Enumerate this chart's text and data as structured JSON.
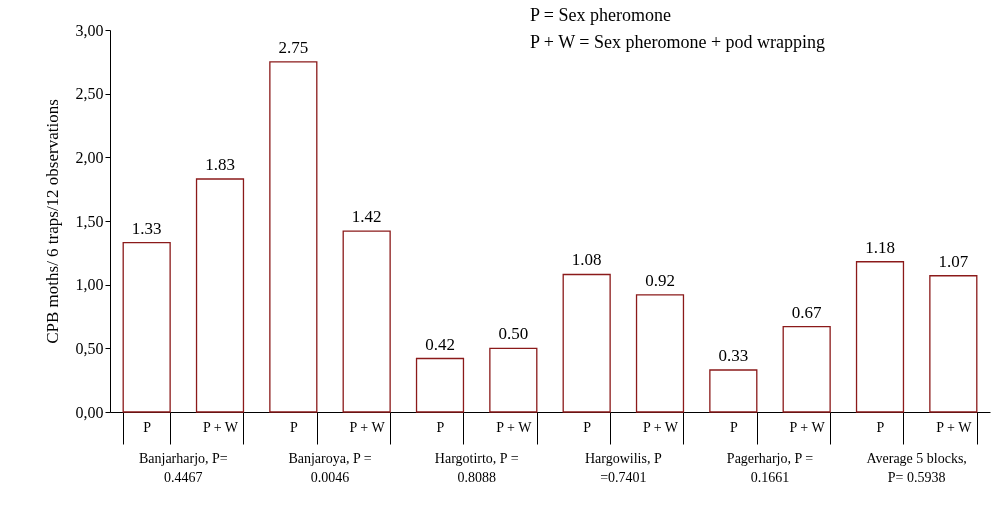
{
  "chart_data": {
    "type": "bar",
    "ylabel": "CPB moths/ 6 traps/12 observations",
    "categories": [
      "P",
      "P + W",
      "P",
      "P + W",
      "P",
      "P + W",
      "P",
      "P + W",
      "P",
      "P + W",
      "P",
      "P + W"
    ],
    "values": [
      1.33,
      1.83,
      2.75,
      1.42,
      0.42,
      0.5,
      1.08,
      0.92,
      0.33,
      0.67,
      1.18,
      1.07
    ],
    "value_labels": [
      "1.33",
      "1.83",
      "2.75",
      "1.42",
      "0.42",
      "0.50",
      "1.08",
      "0.92",
      "0.33",
      "0.67",
      "1.18",
      "1.07"
    ],
    "color": "#ffffff",
    "ylim": [
      0,
      3
    ],
    "yticks": [
      {
        "value": 0,
        "label": "0,00"
      },
      {
        "value": 0.5,
        "label": "0,50"
      },
      {
        "value": 1,
        "label": "1,00"
      },
      {
        "value": 1.5,
        "label": "1,50"
      },
      {
        "value": 2,
        "label": "2,00"
      },
      {
        "value": 2.5,
        "label": "2,50"
      },
      {
        "value": 3,
        "label": "3,00"
      }
    ],
    "grid": false,
    "annotations": [
      "P = Sex pheromone",
      "P + W = Sex pheromone + pod wrapping",
      "Banjarharjo, P=\n0.4467",
      "Banjaroya, P =\n0.0046",
      "Hargotirto, P =\n0.8088",
      "Hargowilis, P\n=0.7401",
      "Pagerharjo, P =\n0.1661",
      "Average 5 blocks,\nP= 0.5938"
    ]
  }
}
